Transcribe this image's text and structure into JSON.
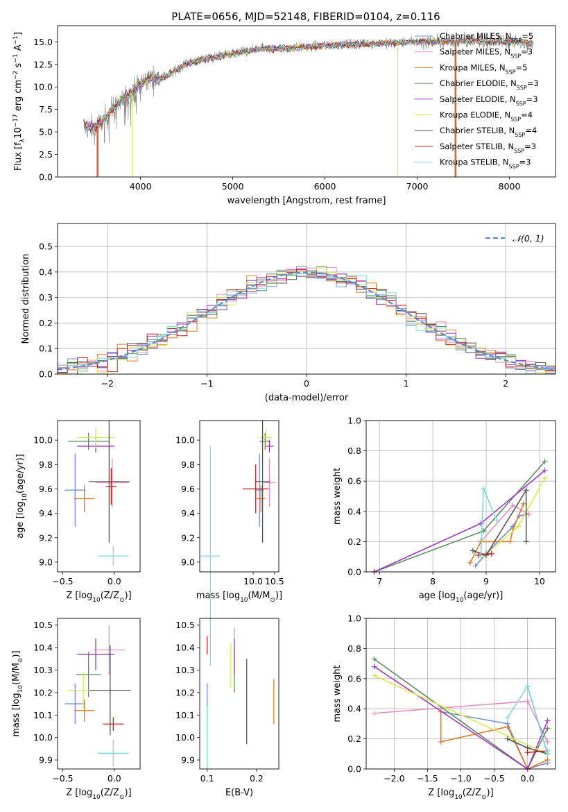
{
  "figure_title": "PLATE=0656, MJD=52148, FIBERID=0104, z=0.116",
  "palette": {
    "chabrier_miles": "#6f8fdf",
    "salpeter_miles": "#e58fc0",
    "kroupa_miles": "#e07b22",
    "chabrier_elodie": "#5a8a5e",
    "salpeter_elodie": "#9e37c0",
    "kroupa_elodie": "#d8ea4e",
    "chabrier_stelib": "#555555",
    "salpeter_stelib": "#c0201c",
    "kroupa_stelib": "#82d8d8",
    "data_spectrum": "#808080",
    "normal_curve": "#5b8bd6"
  },
  "chart_data": [
    {
      "id": "spectrum",
      "type": "line",
      "title": "PLATE=0656, MJD=52148, FIBERID=0104, z=0.116",
      "xlabel": "wavelength [Angstrom, rest frame]",
      "ylabel_parts": [
        "Flux [f",
        "λ",
        "10",
        "−17",
        " erg cm",
        "−2",
        " s",
        "−1",
        " A",
        "−1",
        "]"
      ],
      "xlim": [
        3100,
        8500
      ],
      "ylim": [
        0,
        16.8
      ],
      "xticks": [
        4000,
        5000,
        6000,
        7000,
        8000
      ],
      "yticks": [
        0.0,
        2.5,
        5.0,
        7.5,
        10.0,
        12.5,
        15.0
      ],
      "grid": false,
      "legend_position": "right",
      "spectrum_anchors": {
        "x": [
          3400,
          3500,
          3600,
          3700,
          3800,
          3900,
          4000,
          4100,
          4200,
          4300,
          4400,
          4500,
          4700,
          5000,
          5300,
          5600,
          6000,
          6500,
          7000,
          7500,
          8000,
          8250
        ],
        "y": [
          5.6,
          5.4,
          6.3,
          7.6,
          8.6,
          9.4,
          10.3,
          11.0,
          10.9,
          11.3,
          12.0,
          12.6,
          13.1,
          13.7,
          14.2,
          14.3,
          14.6,
          14.8,
          15.0,
          15.1,
          15.0,
          14.9
        ]
      },
      "series": [
        {
          "name": "Chabrier MILES",
          "nssp": "5",
          "color_key": "chabrier_miles"
        },
        {
          "name": "Salpeter MILES",
          "nssp": "3",
          "color_key": "salpeter_miles"
        },
        {
          "name": "Kroupa MILES",
          "nssp": "5",
          "color_key": "kroupa_miles"
        },
        {
          "name": "Chabrier ELODIE",
          "nssp": "3",
          "color_key": "chabrier_elodie"
        },
        {
          "name": "Salpeter ELODIE",
          "nssp": "3",
          "color_key": "salpeter_elodie"
        },
        {
          "name": "Kroupa ELODIE",
          "nssp": "4",
          "color_key": "kroupa_elodie"
        },
        {
          "name": "Chabrier STELIB",
          "nssp": "4",
          "color_key": "chabrier_stelib"
        },
        {
          "name": "Salpeter STELIB",
          "nssp": "3",
          "color_key": "salpeter_stelib"
        },
        {
          "name": "Kroupa STELIB",
          "nssp": "3",
          "color_key": "kroupa_stelib"
        }
      ],
      "dropouts": [
        {
          "x": 3530,
          "color_key": "salpeter_stelib"
        },
        {
          "x": 3540,
          "color_key": "kroupa_miles"
        },
        {
          "x": 3910,
          "color_key": "kroupa_elodie"
        },
        {
          "x": 6790,
          "color_key": "kroupa_elodie"
        },
        {
          "x": 7410,
          "color_key": "kroupa_miles"
        },
        {
          "x": 7420,
          "color_key": "salpeter_stelib"
        }
      ]
    },
    {
      "id": "residual_histogram",
      "type": "histogram",
      "xlabel": "(data-model)/error",
      "ylabel": "Normed distribution",
      "xlim": [
        -2.5,
        2.5
      ],
      "ylim": [
        0,
        0.59
      ],
      "xticks": [
        -2,
        -1,
        0,
        1,
        2
      ],
      "xtick_labels": [
        "−2",
        "−1",
        "0",
        "1",
        "2"
      ],
      "yticks": [
        0.0,
        0.1,
        0.2,
        0.3,
        0.4,
        0.5
      ],
      "grid": true,
      "legend_position": "upper right",
      "normal_curve": {
        "label": "𝒩(0, 1)",
        "mean": 0,
        "sigma": 1
      },
      "bin_width": 0.1
    },
    {
      "id": "age_vs_z",
      "type": "errorbar",
      "xlabel_parts": [
        "Z [log",
        "10",
        "(Z/Z",
        "⊙",
        ")]"
      ],
      "ylabel_parts": [
        "age  [log",
        "10",
        "(age/yr)]"
      ],
      "xlim": [
        -0.55,
        0.25
      ],
      "ylim": [
        8.92,
        10.16
      ],
      "xticks": [
        -0.5,
        0.0
      ],
      "xtick_labels": [
        "−0.5",
        "0.0"
      ],
      "yticks": [
        9.0,
        9.2,
        9.4,
        9.6,
        9.8,
        10.0
      ],
      "grid": false,
      "points": [
        {
          "color_key": "chabrier_miles",
          "x": -0.38,
          "xerr": 0.1,
          "y": 9.59,
          "yerr": 0.3
        },
        {
          "color_key": "salpeter_miles",
          "x": -0.02,
          "xerr": 0.16,
          "y": 9.65,
          "yerr": 0.2
        },
        {
          "color_key": "kroupa_miles",
          "x": -0.29,
          "xerr": 0.1,
          "y": 9.52,
          "yerr": 0.11
        },
        {
          "color_key": "chabrier_elodie",
          "x": -0.25,
          "xerr": 0.2,
          "y": 9.99,
          "yerr": 0.07
        },
        {
          "color_key": "salpeter_elodie",
          "x": -0.18,
          "xerr": 0.18,
          "y": 9.95,
          "yerr": 0.05
        },
        {
          "color_key": "kroupa_elodie",
          "x": -0.18,
          "xerr": 0.18,
          "y": 10.02,
          "yerr": 0.08
        },
        {
          "color_key": "chabrier_stelib",
          "x": -0.05,
          "xerr": 0.2,
          "y": 9.66,
          "yerr": 0.5
        },
        {
          "color_key": "salpeter_stelib",
          "x": -0.03,
          "xerr": 0.05,
          "y": 9.62,
          "yerr": 0.15
        },
        {
          "color_key": "kroupa_stelib",
          "x": -0.01,
          "xerr": 0.15,
          "y": 9.05,
          "yerr": 0.08
        }
      ]
    },
    {
      "id": "age_vs_mass",
      "type": "errorbar",
      "xlabel_parts": [
        "mass [log",
        "10",
        "(M/M",
        "⊙",
        ")]"
      ],
      "ylabel": "",
      "xlim": [
        8.75,
        10.6
      ],
      "ylim": [
        8.92,
        10.16
      ],
      "xticks": [
        9.0,
        10.0,
        10.5
      ],
      "xtick_labels": [
        "",
        "10.0",
        "10.5"
      ],
      "yticks": [
        9.0,
        9.2,
        9.4,
        9.6,
        9.8,
        10.0
      ],
      "grid": false,
      "points": [
        {
          "color_key": "chabrier_miles",
          "x": 10.15,
          "xerr": 0.1,
          "y": 9.59,
          "yerr": 0.3
        },
        {
          "color_key": "salpeter_miles",
          "x": 10.38,
          "xerr": 0.14,
          "y": 9.65,
          "yerr": 0.2
        },
        {
          "color_key": "kroupa_miles",
          "x": 10.18,
          "xerr": 0.1,
          "y": 9.52,
          "yerr": 0.11
        },
        {
          "color_key": "chabrier_elodie",
          "x": 10.28,
          "xerr": 0.13,
          "y": 9.99,
          "yerr": 0.07
        },
        {
          "color_key": "salpeter_elodie",
          "x": 10.38,
          "xerr": 0.1,
          "y": 9.95,
          "yerr": 0.05
        },
        {
          "color_key": "kroupa_elodie",
          "x": 10.3,
          "xerr": 0.15,
          "y": 10.02,
          "yerr": 0.08
        },
        {
          "color_key": "chabrier_stelib",
          "x": 10.22,
          "xerr": 0.18,
          "y": 9.66,
          "yerr": 0.5
        },
        {
          "color_key": "salpeter_stelib",
          "x": 10.06,
          "xerr": 0.3,
          "y": 9.6,
          "yerr": 0.2
        },
        {
          "color_key": "kroupa_stelib",
          "x": 9.0,
          "xerr": 0.22,
          "y": 9.05,
          "yerr": 0.9
        }
      ]
    },
    {
      "id": "massweight_vs_age",
      "type": "line",
      "xlabel_parts": [
        "age  [log",
        "10",
        "(age/yr)]"
      ],
      "ylabel": "mass weight",
      "xlim": [
        6.75,
        10.3
      ],
      "ylim": [
        0,
        1.0
      ],
      "xticks": [
        7,
        8,
        9,
        10
      ],
      "yticks": [
        0.0,
        0.2,
        0.4,
        0.6,
        0.8,
        1.0
      ],
      "grid": true,
      "series": [
        {
          "color_key": "chabrier_miles",
          "x": [
            8.8,
            9.0,
            9.5,
            9.62,
            9.75
          ],
          "y": [
            0.04,
            0.12,
            0.3,
            0.37,
            0.38
          ]
        },
        {
          "color_key": "salpeter_miles",
          "x": [
            8.9,
            9.5,
            9.8
          ],
          "y": [
            0.2,
            0.44,
            0.38
          ]
        },
        {
          "color_key": "kroupa_miles",
          "x": [
            8.7,
            8.9,
            9.45,
            9.5,
            9.7
          ],
          "y": [
            0.06,
            0.2,
            0.2,
            0.28,
            0.45
          ]
        },
        {
          "color_key": "chabrier_elodie",
          "x": [
            6.9,
            8.95,
            10.1
          ],
          "y": [
            0.0,
            0.27,
            0.73
          ]
        },
        {
          "color_key": "salpeter_elodie",
          "x": [
            6.9,
            8.9,
            10.1
          ],
          "y": [
            0.0,
            0.32,
            0.67
          ]
        },
        {
          "color_key": "kroupa_elodie",
          "x": [
            8.95,
            9.6,
            10.1
          ],
          "y": [
            0.1,
            0.3,
            0.62
          ]
        },
        {
          "color_key": "chabrier_stelib",
          "x": [
            8.75,
            9.0,
            9.75,
            9.75
          ],
          "y": [
            0.14,
            0.11,
            0.54,
            0.2
          ]
        },
        {
          "color_key": "salpeter_stelib",
          "x": [
            8.85,
            9.1
          ],
          "y": [
            0.11,
            0.12
          ]
        },
        {
          "color_key": "kroupa_stelib",
          "x": [
            8.9,
            8.95,
            9.2
          ],
          "y": [
            0.1,
            0.55,
            0.34
          ]
        }
      ]
    },
    {
      "id": "mass_vs_z",
      "type": "errorbar",
      "xlabel_parts": [
        "Z [log",
        "10",
        "(Z/Z",
        "⊙",
        ")]"
      ],
      "ylabel_parts": [
        "mass [log",
        "10",
        "(M/M",
        "⊙",
        ")]"
      ],
      "xlim": [
        -0.55,
        0.25
      ],
      "ylim": [
        9.86,
        10.53
      ],
      "xticks": [
        -0.5,
        0.0
      ],
      "xtick_labels": [
        "−0.5",
        "0.0"
      ],
      "yticks": [
        9.9,
        10.0,
        10.1,
        10.2,
        10.3,
        10.4,
        10.5
      ],
      "grid": false,
      "points": [
        {
          "color_key": "chabrier_miles",
          "x": -0.38,
          "xerr": 0.1,
          "y": 10.15,
          "yerr": 0.09
        },
        {
          "color_key": "salpeter_miles",
          "x": -0.05,
          "xerr": 0.15,
          "y": 10.39,
          "yerr": 0.11
        },
        {
          "color_key": "kroupa_miles",
          "x": -0.29,
          "xerr": 0.1,
          "y": 10.12,
          "yerr": 0.05
        },
        {
          "color_key": "chabrier_elodie",
          "x": -0.25,
          "xerr": 0.12,
          "y": 10.28,
          "yerr": 0.1
        },
        {
          "color_key": "salpeter_elodie",
          "x": -0.18,
          "xerr": 0.18,
          "y": 10.37,
          "yerr": 0.07
        },
        {
          "color_key": "kroupa_elodie",
          "x": -0.3,
          "xerr": 0.15,
          "y": 10.21,
          "yerr": 0.08
        },
        {
          "color_key": "chabrier_stelib",
          "x": -0.04,
          "xerr": 0.2,
          "y": 10.21,
          "yerr": 0.2
        },
        {
          "color_key": "salpeter_stelib",
          "x": -0.01,
          "xerr": 0.1,
          "y": 10.06,
          "yerr": 0.03
        },
        {
          "color_key": "kroupa_stelib",
          "x": -0.01,
          "xerr": 0.15,
          "y": 9.93,
          "yerr": 0.06
        }
      ]
    },
    {
      "id": "mass_vs_ebv",
      "type": "errorbar",
      "xlabel": "E(B-V)",
      "ylabel": "",
      "xlim": [
        0.085,
        0.245
      ],
      "ylim": [
        9.86,
        10.53
      ],
      "xticks": [
        0.1,
        0.2
      ],
      "xtick_labels": [
        "0.1",
        "0.2"
      ],
      "yticks": [
        9.9,
        10.0,
        10.1,
        10.2,
        10.3,
        10.4,
        10.5
      ],
      "grid": false,
      "points": [
        {
          "color_key": "chabrier_miles",
          "x": 0.1,
          "xerr": 0,
          "y": 10.15,
          "yerr": 0.09
        },
        {
          "color_key": "salpeter_miles",
          "x": 0.155,
          "xerr": 0,
          "y": 10.39,
          "yerr": 0.1
        },
        {
          "color_key": "kroupa_miles",
          "x": 0.235,
          "xerr": 0,
          "y": 10.16,
          "yerr": 0.1
        },
        {
          "color_key": "chabrier_elodie",
          "x": 0.155,
          "xerr": 0,
          "y": 10.3,
          "yerr": 0.1
        },
        {
          "color_key": "salpeter_elodie",
          "x": 0.155,
          "xerr": 0,
          "y": 10.36,
          "yerr": 0.08
        },
        {
          "color_key": "kroupa_elodie",
          "x": 0.148,
          "xerr": 0,
          "y": 10.32,
          "yerr": 0.1
        },
        {
          "color_key": "chabrier_stelib",
          "x": 0.18,
          "xerr": 0,
          "y": 10.16,
          "yerr": 0.19
        },
        {
          "color_key": "salpeter_stelib",
          "x": 0.1,
          "xerr": 0,
          "y": 10.41,
          "yerr": 0.04
        },
        {
          "color_key": "kroupa_stelib",
          "x": 0.1,
          "xerr": 0,
          "y": 10.0,
          "yerr": 0.14
        }
      ]
    },
    {
      "id": "massweight_vs_z",
      "type": "line",
      "xlabel_parts": [
        "Z [log",
        "10",
        "(Z/Z",
        "⊙",
        ")]"
      ],
      "ylabel": "mass weight",
      "xlim": [
        -2.42,
        0.42
      ],
      "ylim": [
        0,
        1.0
      ],
      "xticks": [
        -2.0,
        -1.5,
        -1.0,
        -0.5,
        0.0
      ],
      "xtick_labels": [
        "−2.0",
        "−1.5",
        "−1.0",
        "−0.5",
        "0.0"
      ],
      "yticks": [
        0.0,
        0.2,
        0.4,
        0.6,
        0.8,
        1.0
      ],
      "grid": true,
      "series": [
        {
          "color_key": "chabrier_miles",
          "x": [
            -1.3,
            -0.3,
            0.0,
            0.3
          ],
          "y": [
            0.38,
            0.3,
            0.0,
            0.04
          ]
        },
        {
          "color_key": "salpeter_miles",
          "x": [
            -2.3,
            0.0,
            0.3
          ],
          "y": [
            0.37,
            0.45,
            0.18
          ]
        },
        {
          "color_key": "kroupa_miles",
          "x": [
            -1.3,
            -1.3,
            -0.3,
            0.0,
            0.3
          ],
          "y": [
            0.38,
            0.18,
            0.28,
            0.0,
            0.06
          ]
        },
        {
          "color_key": "chabrier_elodie",
          "x": [
            -2.3,
            0.0,
            0.3
          ],
          "y": [
            0.73,
            0.0,
            0.27
          ]
        },
        {
          "color_key": "salpeter_elodie",
          "x": [
            -2.3,
            0.0,
            0.3
          ],
          "y": [
            0.68,
            0.0,
            0.32
          ]
        },
        {
          "color_key": "kroupa_elodie",
          "x": [
            -2.3,
            0.3
          ],
          "y": [
            0.62,
            0.1
          ]
        },
        {
          "color_key": "chabrier_stelib",
          "x": [
            -0.3,
            0.0,
            0.3,
            0.0
          ],
          "y": [
            0.2,
            0.14,
            0.1,
            0.55
          ]
        },
        {
          "color_key": "salpeter_stelib",
          "x": [
            0.0,
            0.3
          ],
          "y": [
            0.11,
            0.12
          ]
        },
        {
          "color_key": "kroupa_stelib",
          "x": [
            -0.3,
            0.0,
            0.3,
            0.3
          ],
          "y": [
            0.34,
            0.55,
            0.1,
            0.12
          ]
        }
      ]
    }
  ]
}
